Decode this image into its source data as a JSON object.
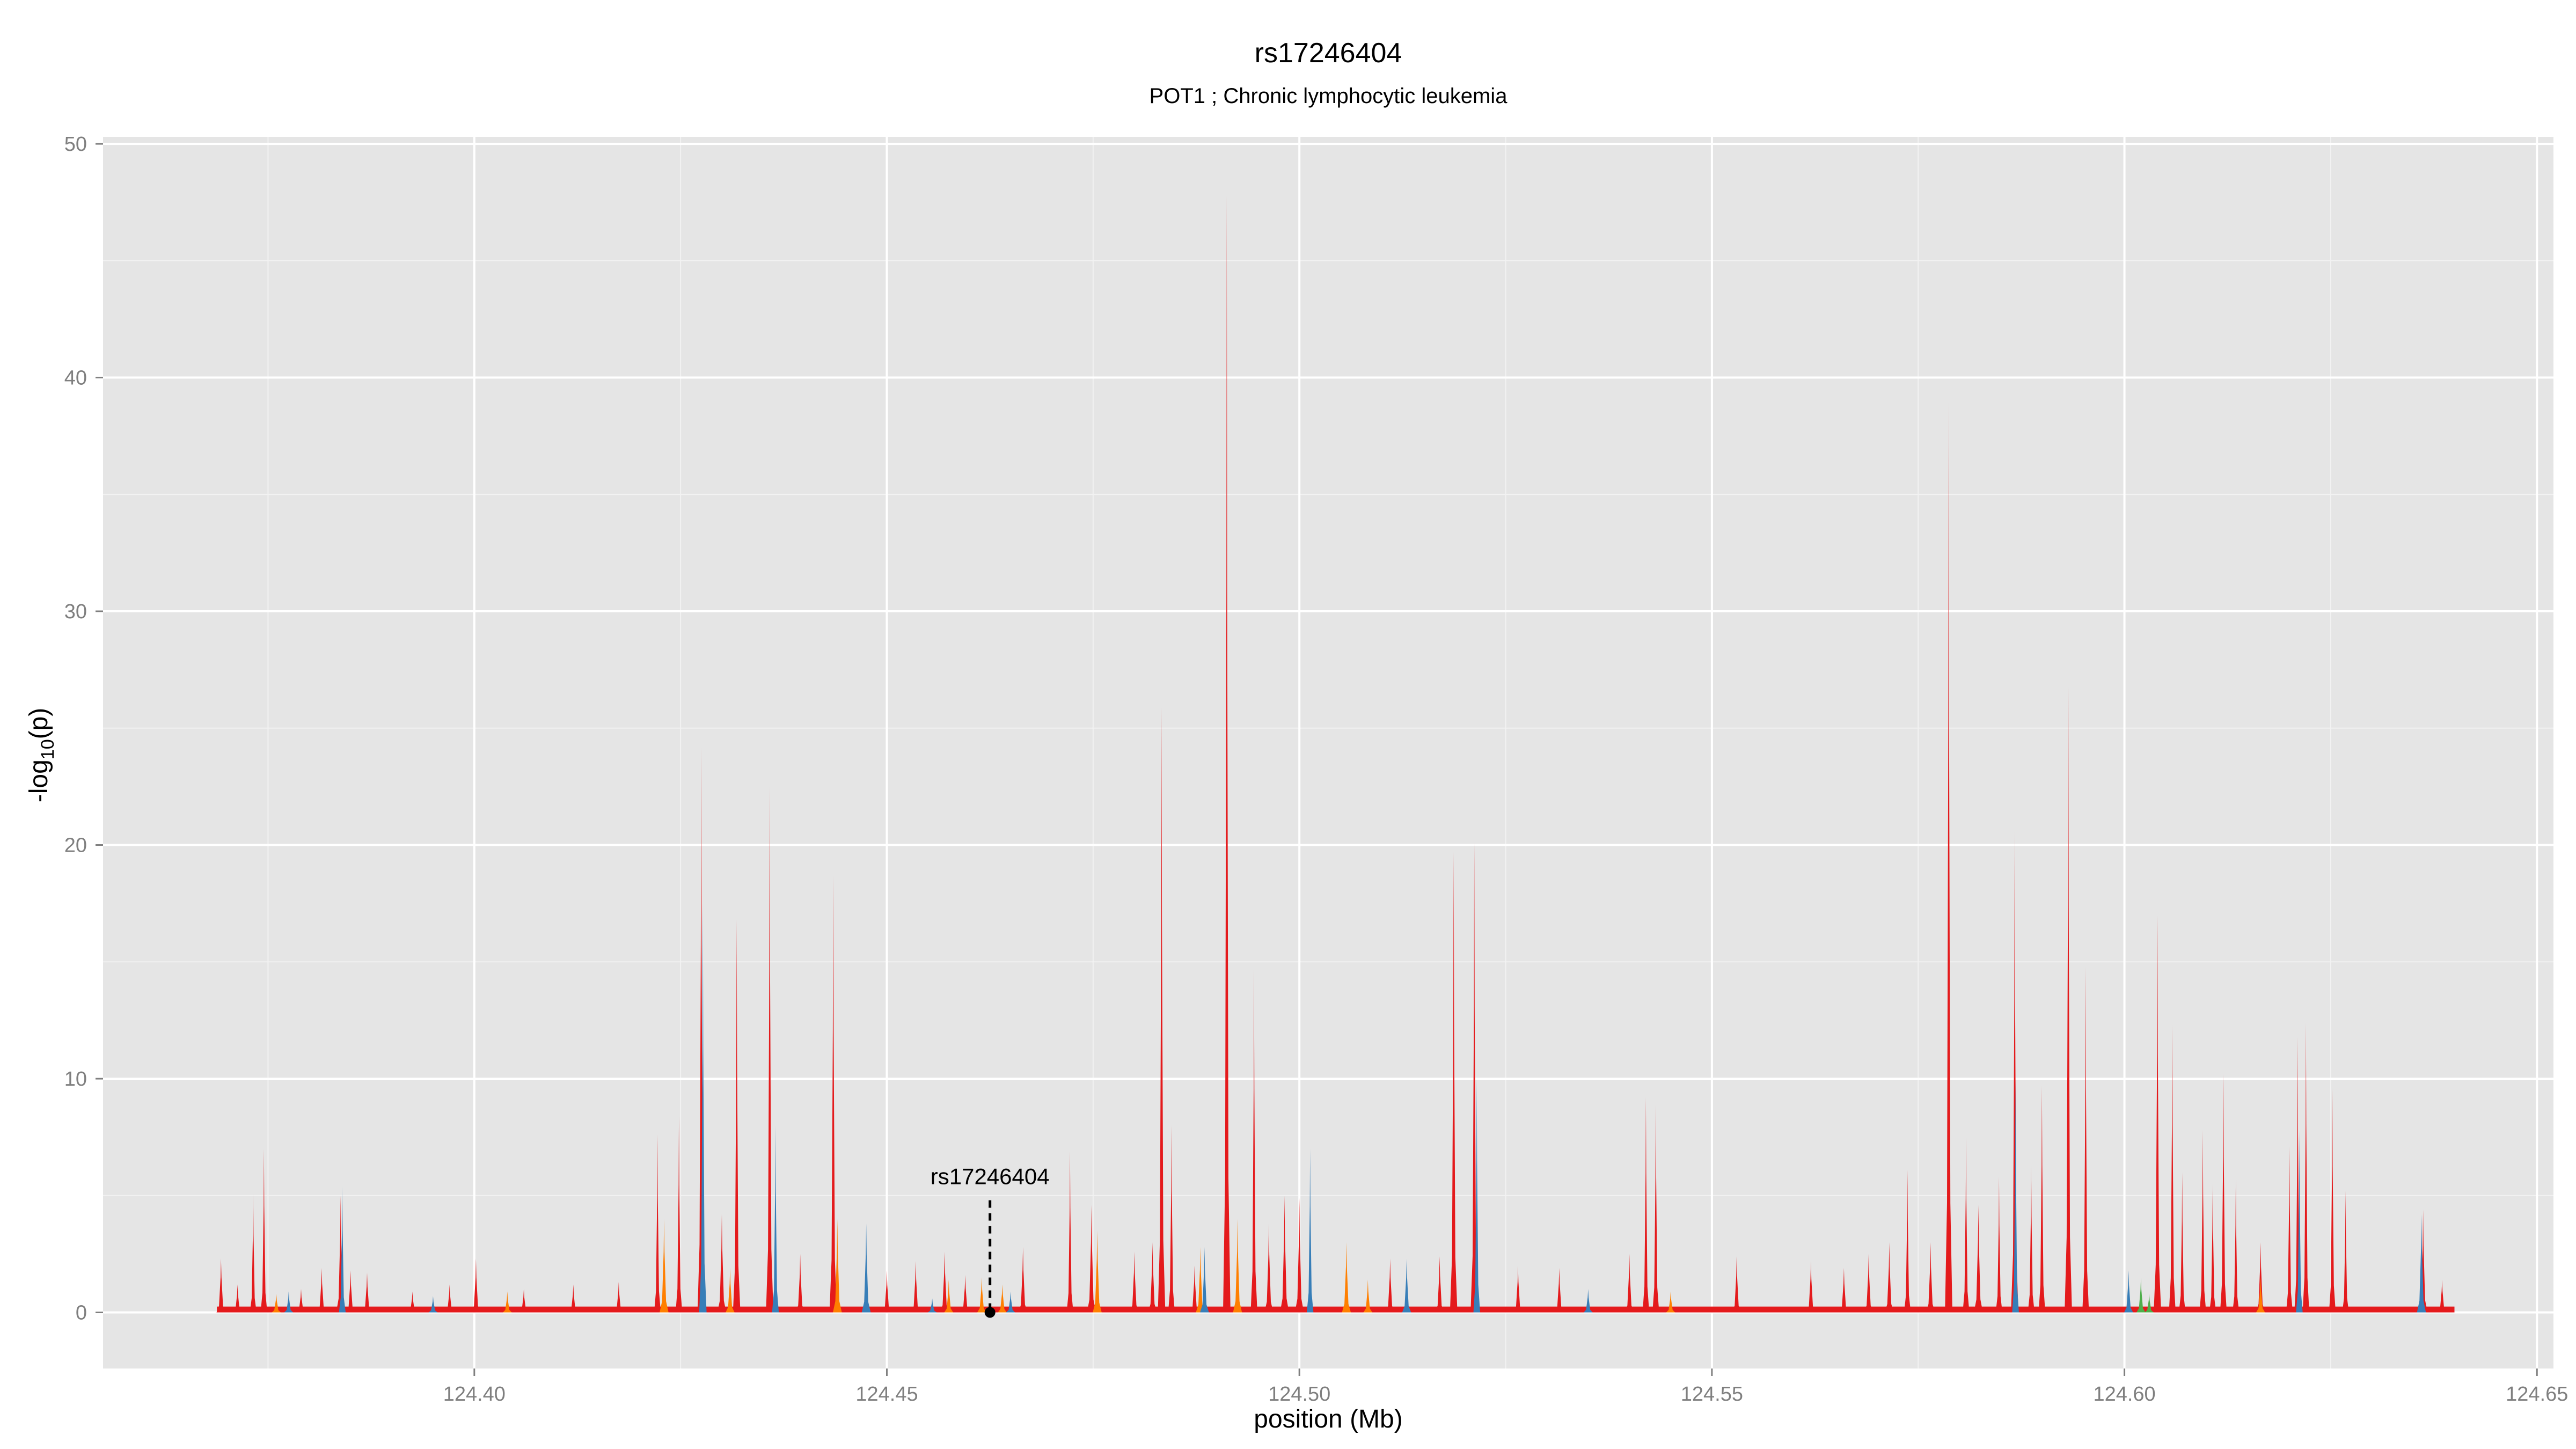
{
  "chart_data": {
    "type": "area",
    "title": "rs17246404",
    "subtitle": "POT1 ; Chronic lymphocytic leukemia",
    "xlabel": "position (Mb)",
    "ylabel": "-log10(p)",
    "xlim": [
      124.355,
      124.652
    ],
    "ylim": [
      -2.4,
      50.3
    ],
    "x_ticks": [
      124.4,
      124.45,
      124.5,
      124.55,
      124.6,
      124.65
    ],
    "x_tick_labels": [
      "124.40",
      "124.45",
      "124.50",
      "124.55",
      "124.60",
      "124.65"
    ],
    "y_ticks": [
      0,
      10,
      20,
      30,
      40,
      50
    ],
    "y_tick_labels": [
      "0",
      "10",
      "20",
      "30",
      "40",
      "50"
    ],
    "grid": true,
    "background": "#e5e5e5",
    "region": [
      124.3688,
      124.64
    ],
    "annotation": {
      "label": "rs17246404",
      "x": 124.4625,
      "y": 0,
      "line_top": 4.8
    },
    "series": [
      {
        "color": "#e41a1c",
        "peaks": [
          [
            124.3693,
            2.3
          ],
          [
            124.3713,
            1.2
          ],
          [
            124.3732,
            5.1
          ],
          [
            124.3745,
            7.0
          ],
          [
            124.379,
            1.0
          ],
          [
            124.3815,
            1.9
          ],
          [
            124.3838,
            5.0
          ],
          [
            124.385,
            1.8
          ],
          [
            124.387,
            1.7
          ],
          [
            124.3925,
            0.9
          ],
          [
            124.397,
            1.2
          ],
          [
            124.4002,
            2.3
          ],
          [
            124.406,
            1.0
          ],
          [
            124.412,
            1.2
          ],
          [
            124.4175,
            1.3
          ],
          [
            124.4222,
            7.6
          ],
          [
            124.4248,
            8.4
          ],
          [
            124.4275,
            24.2
          ],
          [
            124.43,
            4.2
          ],
          [
            124.4318,
            16.8
          ],
          [
            124.4358,
            22.5
          ],
          [
            124.4395,
            2.5
          ],
          [
            124.4435,
            18.7
          ],
          [
            124.45,
            1.8
          ],
          [
            124.4535,
            2.2
          ],
          [
            124.457,
            2.6
          ],
          [
            124.4595,
            1.6
          ],
          [
            124.4665,
            2.8
          ],
          [
            124.4722,
            6.9
          ],
          [
            124.4748,
            4.6
          ],
          [
            124.48,
            2.6
          ],
          [
            124.4822,
            3.0
          ],
          [
            124.4833,
            25.9
          ],
          [
            124.4845,
            8.0
          ],
          [
            124.4873,
            2.0
          ],
          [
            124.4912,
            47.8
          ],
          [
            124.4945,
            14.7
          ],
          [
            124.4963,
            3.8
          ],
          [
            124.4982,
            5.0
          ],
          [
            124.5,
            4.9
          ],
          [
            124.511,
            2.3
          ],
          [
            124.517,
            2.4
          ],
          [
            124.5187,
            19.7
          ],
          [
            124.5212,
            20.1
          ],
          [
            124.5265,
            2.0
          ],
          [
            124.5315,
            1.9
          ],
          [
            124.54,
            2.5
          ],
          [
            124.542,
            9.2
          ],
          [
            124.5432,
            8.9
          ],
          [
            124.553,
            2.4
          ],
          [
            124.562,
            2.2
          ],
          [
            124.566,
            1.9
          ],
          [
            124.569,
            2.5
          ],
          [
            124.5715,
            3.0
          ],
          [
            124.5737,
            6.1
          ],
          [
            124.5765,
            3.0
          ],
          [
            124.5787,
            39.0
          ],
          [
            124.5808,
            7.5
          ],
          [
            124.5823,
            4.6
          ],
          [
            124.5848,
            5.8
          ],
          [
            124.5867,
            20.6
          ],
          [
            124.5887,
            6.3
          ],
          [
            124.59,
            9.7
          ],
          [
            124.5932,
            26.8
          ],
          [
            124.5953,
            14.8
          ],
          [
            124.604,
            17.0
          ],
          [
            124.6058,
            12.3
          ],
          [
            124.607,
            6.0
          ],
          [
            124.6095,
            7.8
          ],
          [
            124.6107,
            5.5
          ],
          [
            124.612,
            10.2
          ],
          [
            124.6135,
            5.7
          ],
          [
            124.6165,
            3.0
          ],
          [
            124.62,
            7.1
          ],
          [
            124.621,
            11.8
          ],
          [
            124.622,
            12.4
          ],
          [
            124.6252,
            9.6
          ],
          [
            124.6268,
            5.2
          ],
          [
            124.6362,
            4.4
          ],
          [
            124.6385,
            1.4
          ]
        ]
      },
      {
        "color": "#ff7f00",
        "peaks": [
          [
            124.376,
            0.8
          ],
          [
            124.404,
            0.9
          ],
          [
            124.423,
            4.0
          ],
          [
            124.431,
            1.9
          ],
          [
            124.444,
            4.0
          ],
          [
            124.4575,
            1.4
          ],
          [
            124.4615,
            1.5
          ],
          [
            124.464,
            1.2
          ],
          [
            124.4755,
            3.5
          ],
          [
            124.488,
            2.8
          ],
          [
            124.4925,
            4.0
          ],
          [
            124.5057,
            3.0
          ],
          [
            124.5083,
            1.4
          ],
          [
            124.545,
            0.9
          ],
          [
            124.6165,
            1.5
          ]
        ]
      },
      {
        "color": "#377eb8",
        "peaks": [
          [
            124.3775,
            0.9
          ],
          [
            124.384,
            5.4
          ],
          [
            124.395,
            0.7
          ],
          [
            124.4277,
            17.5
          ],
          [
            124.4365,
            8.0
          ],
          [
            124.4475,
            3.8
          ],
          [
            124.4555,
            0.6
          ],
          [
            124.465,
            0.9
          ],
          [
            124.4885,
            2.8
          ],
          [
            124.5013,
            7.0
          ],
          [
            124.513,
            2.3
          ],
          [
            124.5215,
            10.0
          ],
          [
            124.535,
            1.0
          ],
          [
            124.5868,
            10.0
          ],
          [
            124.6005,
            1.8
          ],
          [
            124.6212,
            7.8
          ],
          [
            124.636,
            4.2
          ]
        ]
      },
      {
        "color": "#4daf4a",
        "peaks": [
          [
            124.602,
            1.5
          ],
          [
            124.603,
            0.8
          ]
        ]
      }
    ]
  }
}
